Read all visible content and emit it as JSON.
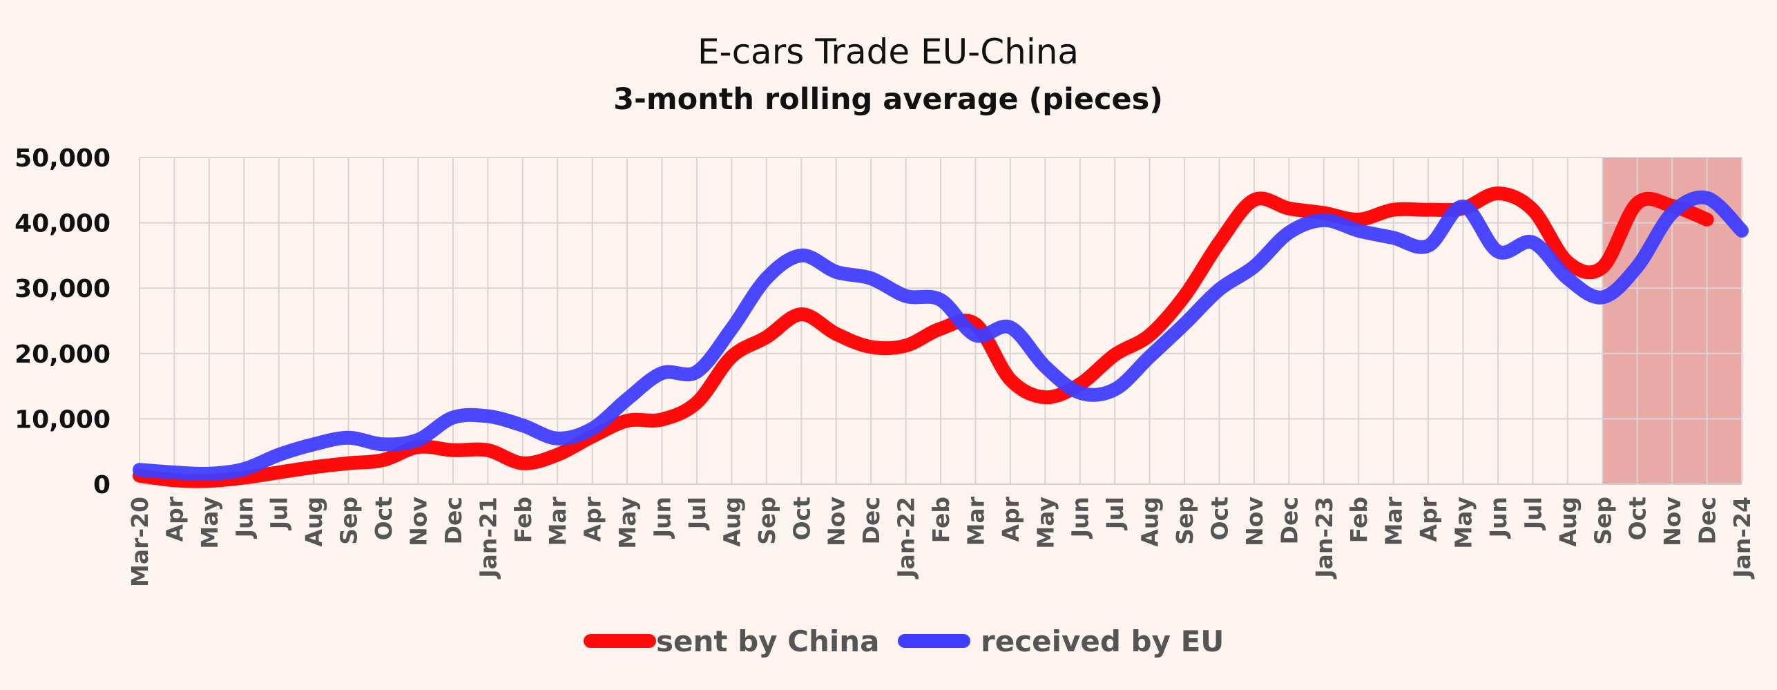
{
  "chart_data": {
    "type": "line",
    "title": "E-cars Trade EU-China",
    "subtitle": "3-month rolling average (pieces)",
    "xlabel": "",
    "ylabel": "",
    "ylim": [
      0,
      50000
    ],
    "yticks": [
      0,
      10000,
      20000,
      30000,
      40000,
      50000
    ],
    "ytick_labels": [
      "0",
      "10,000",
      "20,000",
      "30,000",
      "40,000",
      "50,000"
    ],
    "grid": true,
    "legend": "bottom-center",
    "highlight": {
      "from": "Sep",
      "to": "Jan-24",
      "color": "#E9A9A7"
    },
    "categories": [
      "Mar-20",
      "Apr",
      "May",
      "Jun",
      "Jul",
      "Aug",
      "Sep",
      "Oct",
      "Nov",
      "Dec",
      "Jan-21",
      "Feb",
      "Mar",
      "Apr",
      "May",
      "Jun",
      "Jul",
      "Aug",
      "Sep",
      "Oct",
      "Nov",
      "Dec",
      "Jan-22",
      "Feb",
      "Mar",
      "Apr",
      "May",
      "Jun",
      "Jul",
      "Aug",
      "Sep",
      "Oct",
      "Nov",
      "Dec",
      "Jan-23",
      "Feb",
      "Mar",
      "Apr",
      "May",
      "Jun",
      "Jul",
      "Aug",
      "Sep",
      "Oct",
      "Nov",
      "Dec",
      "Jan-24"
    ],
    "series": [
      {
        "name": "sent by China",
        "color": "#FF0A0A",
        "values": [
          1300,
          600,
          500,
          1000,
          1800,
          2600,
          3200,
          3700,
          5700,
          5200,
          5200,
          3200,
          4500,
          7300,
          9700,
          9900,
          12500,
          19500,
          22500,
          26000,
          23000,
          21000,
          21200,
          23800,
          24500,
          16000,
          13300,
          15300,
          19800,
          22800,
          28800,
          37000,
          43500,
          42200,
          41500,
          40500,
          42000,
          42000,
          42200,
          44500,
          42000,
          34000,
          33200,
          43000,
          42600,
          40500,
          null
        ]
      },
      {
        "name": "received by EU",
        "color": "#3F3DFF",
        "values": [
          2200,
          1800,
          1600,
          2300,
          4500,
          6100,
          7100,
          6100,
          6800,
          10200,
          10400,
          9000,
          7000,
          8500,
          13000,
          17000,
          17200,
          23800,
          31500,
          35000,
          32500,
          31500,
          28800,
          28200,
          22800,
          24000,
          18000,
          14000,
          14500,
          19500,
          24500,
          29800,
          33300,
          38500,
          40400,
          38800,
          37700,
          36500,
          42500,
          35600,
          37000,
          31500,
          28600,
          33300,
          41500,
          43800,
          38800
        ]
      }
    ]
  }
}
